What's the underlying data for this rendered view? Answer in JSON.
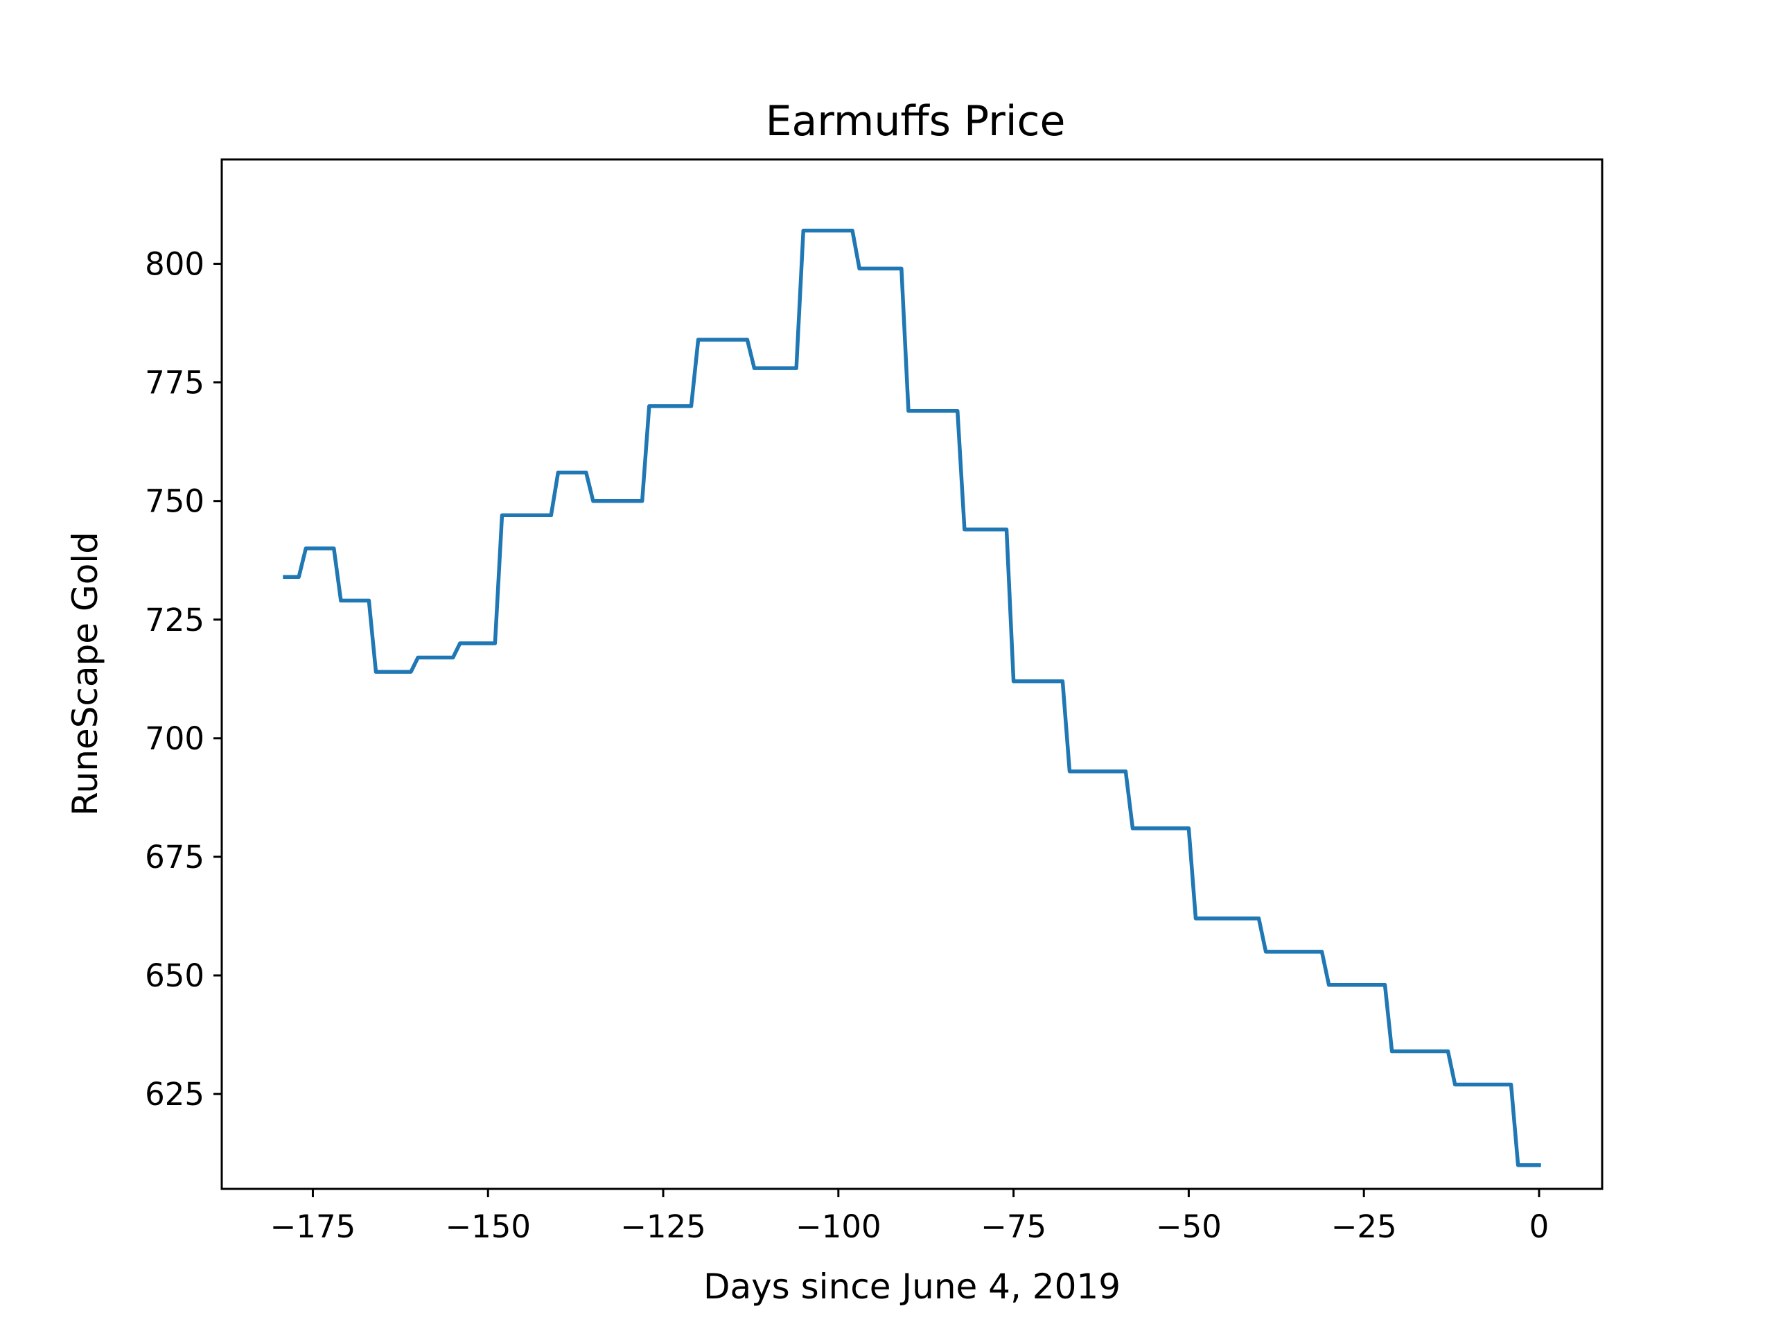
{
  "chart_data": {
    "type": "line",
    "title": "Earmuffs Price",
    "xlabel": "Days since June 4, 2019",
    "ylabel": "RuneScape Gold",
    "xlim": [
      -188,
      9
    ],
    "ylim": [
      605,
      822
    ],
    "x_ticks": [
      -175,
      -150,
      -125,
      -100,
      -75,
      -50,
      -25,
      0
    ],
    "x_tick_labels": [
      "−175",
      "−150",
      "−125",
      "−100",
      "−75",
      "−50",
      "−25",
      "0"
    ],
    "y_ticks": [
      625,
      650,
      675,
      700,
      725,
      750,
      775,
      800
    ],
    "y_tick_labels": [
      "625",
      "650",
      "675",
      "700",
      "725",
      "750",
      "775",
      "800"
    ],
    "grid": false,
    "series": [
      {
        "color": "#1f77b4",
        "x": [
          -179,
          -177,
          -176,
          -172,
          -171,
          -167,
          -166,
          -161,
          -160,
          -155,
          -154,
          -149,
          -148,
          -141,
          -140,
          -136,
          -135,
          -128,
          -127,
          -121,
          -120,
          -113,
          -112,
          -106,
          -105,
          -98,
          -97,
          -91,
          -90,
          -83,
          -82,
          -76,
          -75,
          -68,
          -67,
          -59,
          -58,
          -50,
          -49,
          -40,
          -39,
          -31,
          -30,
          -22,
          -21,
          -13,
          -12,
          -4,
          -3,
          0
        ],
        "y": [
          734,
          734,
          740,
          740,
          729,
          729,
          714,
          714,
          717,
          717,
          720,
          720,
          747,
          747,
          756,
          756,
          750,
          750,
          770,
          770,
          784,
          784,
          778,
          778,
          807,
          807,
          799,
          799,
          769,
          769,
          744,
          744,
          712,
          712,
          693,
          693,
          681,
          681,
          662,
          662,
          655,
          655,
          648,
          648,
          634,
          634,
          627,
          627,
          610,
          610
        ]
      }
    ]
  }
}
